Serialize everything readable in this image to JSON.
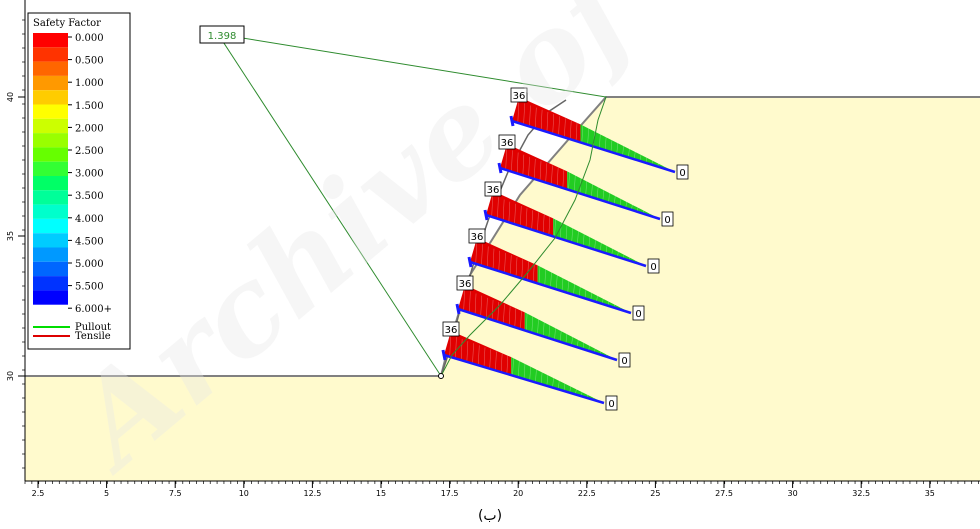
{
  "legend": {
    "title": "Safety Factor",
    "colors": [
      "#ff0000",
      "#ff3300",
      "#ff6600",
      "#ff9900",
      "#ffcc00",
      "#ffff00",
      "#ccff00",
      "#99ff00",
      "#66ff00",
      "#33ff33",
      "#00ff66",
      "#00ff99",
      "#00ffcc",
      "#00ffff",
      "#00ccff",
      "#0099ff",
      "#0066ff",
      "#0033ff",
      "#0000ff"
    ],
    "labels": [
      "0.000",
      "0.500",
      "1.000",
      "1.500",
      "2.000",
      "2.500",
      "3.000",
      "3.500",
      "4.000",
      "4.500",
      "5.000",
      "5.500",
      "6.000+"
    ],
    "lines": [
      {
        "label": "Pullout",
        "color": "#00dd00"
      },
      {
        "label": "Tensile",
        "color": "#dd0000"
      }
    ]
  },
  "slip_surface_factor": "1.398",
  "anchor_labels": [
    {
      "head": "36",
      "tail": "0"
    },
    {
      "head": "36",
      "tail": "0"
    },
    {
      "head": "36",
      "tail": "0"
    },
    {
      "head": "36",
      "tail": "0"
    },
    {
      "head": "36",
      "tail": "0"
    },
    {
      "head": "36",
      "tail": "0"
    }
  ],
  "x_axis_ticks": [
    "2.5",
    "5",
    "7.5",
    "10",
    "12.5",
    "15",
    "17.5",
    "20",
    "22.5",
    "25",
    "27.5",
    "30",
    "32.5",
    "35"
  ],
  "y_axis_ticks": [
    "40",
    "35",
    "30"
  ],
  "caption": "(ب)",
  "watermark": "Archive of",
  "colors": {
    "soil": "#fffacd",
    "ground_line": "#808080",
    "slip": "#2e8b2e",
    "anchor": "#1a1aff"
  }
}
